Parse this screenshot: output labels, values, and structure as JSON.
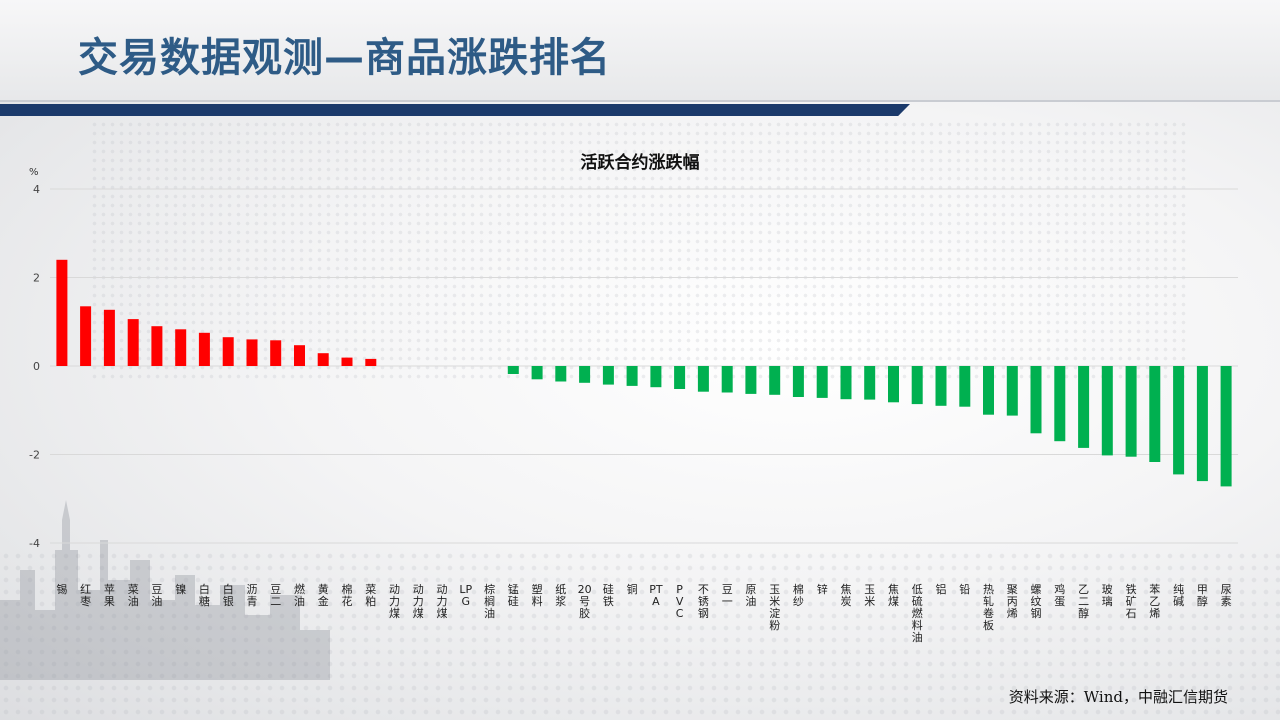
{
  "slide": {
    "title": "交易数据观测—商品涨跌排名",
    "source": "资料来源：Wind，中融汇信期货"
  },
  "colors": {
    "positive": "#ff0000",
    "negative": "#00b050",
    "title": "#2e5b86",
    "title_bar": "#1b3a6b"
  },
  "chart_data": {
    "type": "bar",
    "title": "活跃合约涨跌幅",
    "ylabel": "%",
    "ylim": [
      -4,
      4
    ],
    "yticks": [
      4,
      2,
      0,
      -2,
      -4
    ],
    "grid": true,
    "categories": [
      "锡",
      "红枣",
      "苹果",
      "菜油",
      "豆油",
      "镍",
      "白糖",
      "白银",
      "沥青",
      "豆二",
      "燃油",
      "黄金",
      "棉花",
      "菜粕",
      "动力煤",
      "动力煤",
      "动力煤",
      "LPG",
      "棕榈油",
      "锰硅",
      "塑料",
      "纸浆",
      "20号胶",
      "硅铁",
      "铜",
      "PTA",
      "PVC",
      "不锈钢",
      "豆一",
      "原油",
      "玉米淀粉",
      "棉纱",
      "锌",
      "焦炭",
      "玉米",
      "焦煤",
      "低硫燃料油",
      "铝",
      "铅",
      "热轧卷板",
      "聚丙烯",
      "螺纹钢",
      "鸡蛋",
      "乙二醇",
      "玻璃",
      "铁矿石",
      "苯乙烯",
      "纯碱",
      "甲醇",
      "尿素"
    ],
    "values": [
      2.4,
      1.35,
      1.27,
      1.06,
      0.9,
      0.83,
      0.75,
      0.65,
      0.6,
      0.58,
      0.47,
      0.29,
      0.19,
      0.16,
      0,
      0,
      0,
      0,
      0,
      -0.18,
      -0.3,
      -0.35,
      -0.38,
      -0.42,
      -0.45,
      -0.48,
      -0.52,
      -0.58,
      -0.6,
      -0.63,
      -0.65,
      -0.7,
      -0.72,
      -0.75,
      -0.76,
      -0.82,
      -0.86,
      -0.9,
      -0.92,
      -1.1,
      -1.12,
      -1.52,
      -1.7,
      -1.85,
      -2.02,
      -2.05,
      -2.17,
      -2.45,
      -2.6,
      -2.72
    ]
  }
}
